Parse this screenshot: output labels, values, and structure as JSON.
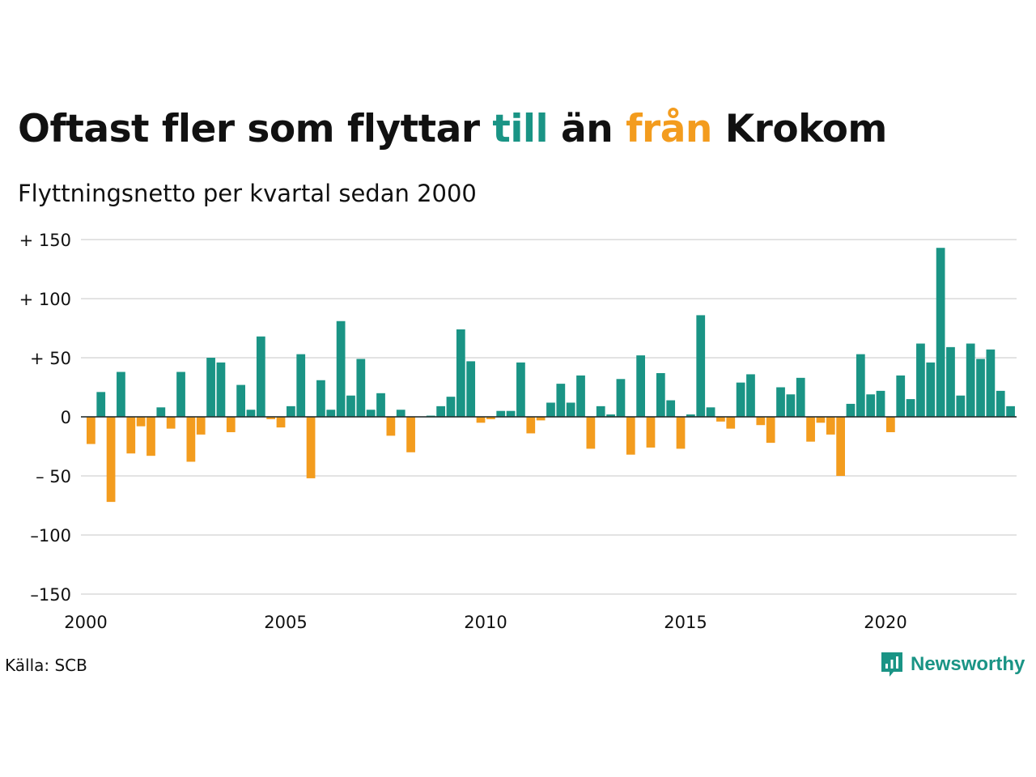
{
  "title": {
    "part1": "Oftast fler som flyttar ",
    "part2": "till",
    "part3": " än ",
    "part4": "från",
    "part5": " Krokom"
  },
  "subtitle": "Flyttningsnetto per kvartal sedan 2000",
  "source": "Källa: SCB",
  "brand": {
    "name": "Newsworthy",
    "logo_icon": "bar-chart-speech-bubble-icon"
  },
  "colors": {
    "positive": "#1a9485",
    "negative": "#f39c1e",
    "grid": "#e3e3e3",
    "text": "#111111"
  },
  "chart_data": {
    "type": "bar",
    "x_start": 2000,
    "periods_per_year": 4,
    "ylim": [
      -150,
      150
    ],
    "yticks": [
      150,
      100,
      50,
      0,
      -50,
      -100,
      -150
    ],
    "ytick_labels": [
      "+ 150",
      "+ 100",
      "+  50",
      "0",
      "– 50",
      "–100",
      "–150"
    ],
    "xticks": [
      2000,
      2005,
      2010,
      2015,
      2020
    ],
    "xtick_labels": [
      "2000",
      "2005",
      "2010",
      "2015",
      "2020"
    ],
    "grid": true,
    "values": [
      -23,
      21,
      -72,
      38,
      -31,
      -8,
      -33,
      8,
      -10,
      38,
      -38,
      -15,
      50,
      46,
      -13,
      27,
      6,
      68,
      -2,
      -9,
      9,
      53,
      -52,
      31,
      6,
      81,
      18,
      49,
      6,
      20,
      -16,
      6,
      -30,
      0,
      1,
      9,
      17,
      74,
      47,
      -5,
      -2,
      5,
      5,
      46,
      -14,
      -3,
      12,
      28,
      12,
      35,
      -27,
      9,
      2,
      32,
      -32,
      52,
      -26,
      37,
      14,
      -27,
      2,
      86,
      8,
      -4,
      -10,
      29,
      36,
      -7,
      -22,
      25,
      19,
      33,
      -21,
      -5,
      -15,
      -50,
      11,
      53,
      19,
      22,
      -13,
      35,
      15,
      62,
      46,
      143,
      59,
      18,
      62,
      49,
      57,
      22,
      9
    ]
  }
}
